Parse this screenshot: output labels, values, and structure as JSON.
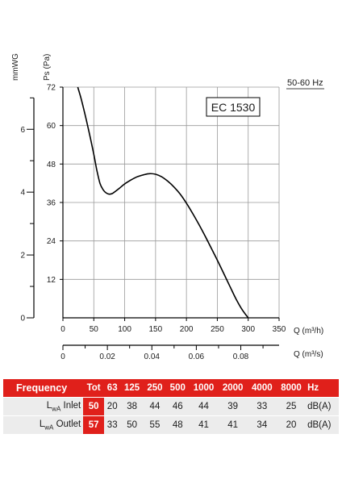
{
  "chart_data": {
    "type": "line",
    "model_label": "EC 1530",
    "frequency_label": "50-60 Hz",
    "y_axis_primary": {
      "label": "Ps (Pa)",
      "range": [
        0,
        72
      ],
      "ticks": [
        0,
        12,
        24,
        36,
        48,
        60,
        72
      ]
    },
    "y_axis_secondary": {
      "label": "mmWG",
      "ticks": [
        0,
        2,
        4,
        6
      ]
    },
    "x_axis_primary": {
      "label": "Q (m³/h)",
      "range": [
        0,
        350
      ],
      "ticks": [
        0,
        50,
        100,
        150,
        200,
        250,
        300,
        350
      ]
    },
    "x_axis_secondary": {
      "label": "Q (m³/s)",
      "tick_labels": [
        "0",
        "0.02",
        "0.04",
        "0.06",
        "0.08"
      ],
      "tick_values": [
        0,
        0.02,
        0.04,
        0.06,
        0.08
      ]
    },
    "grid": true,
    "series": [
      {
        "x": [
          24,
          30,
          40,
          50,
          55,
          60,
          65,
          70,
          75,
          80,
          90,
          100,
          110,
          120,
          130,
          140,
          150,
          160,
          170,
          180,
          190,
          200,
          210,
          220,
          230,
          240,
          250,
          260,
          270,
          280,
          290,
          300
        ],
        "y": [
          72,
          68,
          60,
          51,
          46,
          42,
          40,
          39,
          38.6,
          38.8,
          40.2,
          41.8,
          43,
          44,
          44.6,
          45,
          44.8,
          44,
          42.6,
          40.8,
          38.6,
          35.8,
          32.6,
          29.2,
          25.6,
          21.8,
          18,
          14,
          10,
          6,
          2.6,
          0
        ]
      }
    ]
  },
  "table": {
    "header": {
      "label": "Frequency",
      "tot": "Tot",
      "freqs": [
        "63",
        "125",
        "250",
        "500",
        "1000",
        "2000",
        "4000",
        "8000"
      ],
      "unit": "Hz"
    },
    "rows": [
      {
        "prefix": "L",
        "sub": "wA",
        "name": "Inlet",
        "tot": "50",
        "values": [
          "20",
          "38",
          "44",
          "46",
          "44",
          "39",
          "33",
          "25"
        ],
        "unit": "dB(A)"
      },
      {
        "prefix": "L",
        "sub": "wA",
        "name": "Outlet",
        "tot": "57",
        "values": [
          "33",
          "50",
          "55",
          "48",
          "41",
          "41",
          "34",
          "20"
        ],
        "unit": "dB(A)"
      }
    ]
  }
}
